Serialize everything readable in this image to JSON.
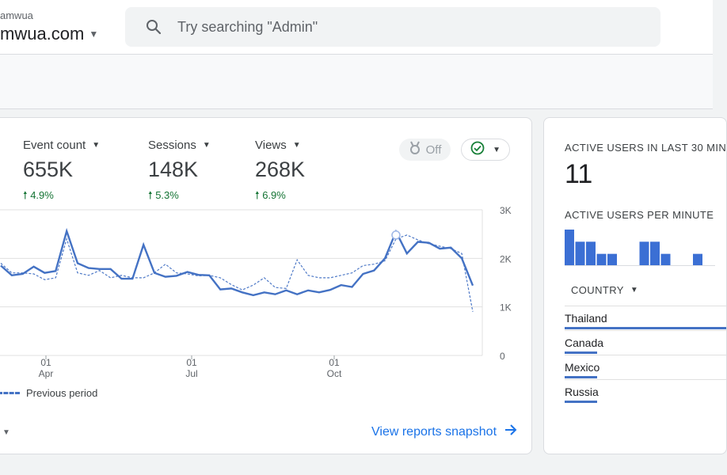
{
  "header": {
    "account_small": "amwua",
    "account_name": "mwua.com",
    "search_placeholder": "Try searching \"Admin\""
  },
  "metrics": [
    {
      "label": "Event count",
      "value": "655K",
      "delta": "4.9%"
    },
    {
      "label": "Sessions",
      "value": "148K",
      "delta": "5.3%"
    },
    {
      "label": "Views",
      "value": "268K",
      "delta": "6.9%"
    }
  ],
  "controls": {
    "off_label": "Off"
  },
  "chart_data": {
    "type": "line",
    "yticks": [
      "3K",
      "2K",
      "1K",
      "0"
    ],
    "xticks": [
      {
        "day": "01",
        "month": "Apr"
      },
      {
        "day": "01",
        "month": "Jul"
      },
      {
        "day": "01",
        "month": "Oct"
      }
    ],
    "ylim": [
      0,
      3000
    ],
    "grid": true,
    "series": [
      {
        "name": "",
        "style": "solid",
        "color": "#4472c4",
        "values": [
          1850,
          1650,
          1680,
          1830,
          1700,
          1740,
          2560,
          1900,
          1800,
          1780,
          1780,
          1580,
          1580,
          2280,
          1700,
          1620,
          1640,
          1720,
          1660,
          1650,
          1360,
          1380,
          1300,
          1240,
          1300,
          1260,
          1340,
          1260,
          1340,
          1300,
          1350,
          1450,
          1410,
          1680,
          1750,
          2000,
          2550,
          2100,
          2340,
          2320,
          2200,
          2220,
          2000,
          1440
        ]
      },
      {
        "name": "Previous period",
        "style": "dashed",
        "color": "#4472c4",
        "values": [
          1900,
          1700,
          1700,
          1680,
          1560,
          1600,
          2400,
          1700,
          1650,
          1750,
          1600,
          1650,
          1600,
          1600,
          1700,
          1880,
          1700,
          1680,
          1640,
          1650,
          1600,
          1460,
          1350,
          1450,
          1600,
          1400,
          1380,
          1970,
          1650,
          1600,
          1600,
          1650,
          1700,
          1850,
          1880,
          1950,
          2400,
          2480,
          2380,
          2300,
          2250,
          2200,
          2100,
          900
        ]
      }
    ],
    "highlight_index": 36
  },
  "footer": {
    "snapshot_label": "View reports snapshot"
  },
  "realtime": {
    "title": "ACTIVE USERS IN LAST 30 MIN",
    "value": "11",
    "per_minute_label": "ACTIVE USERS PER MINUTE",
    "per_minute_values": [
      3,
      2,
      2,
      1,
      1,
      0,
      0,
      2,
      2,
      1,
      0,
      0,
      1
    ],
    "country_header": "COUNTRY",
    "countries": [
      {
        "name": "Thailand",
        "share": 1.0
      },
      {
        "name": "Canada",
        "share": 0.2
      },
      {
        "name": "Mexico",
        "share": 0.2
      },
      {
        "name": "Russia",
        "share": 0.2
      }
    ]
  },
  "icons": {
    "search": "search-icon",
    "medal": "medal-icon",
    "check": "check-circle-icon",
    "arrow": "arrow-right-icon",
    "trend": "arrow-up-icon"
  }
}
